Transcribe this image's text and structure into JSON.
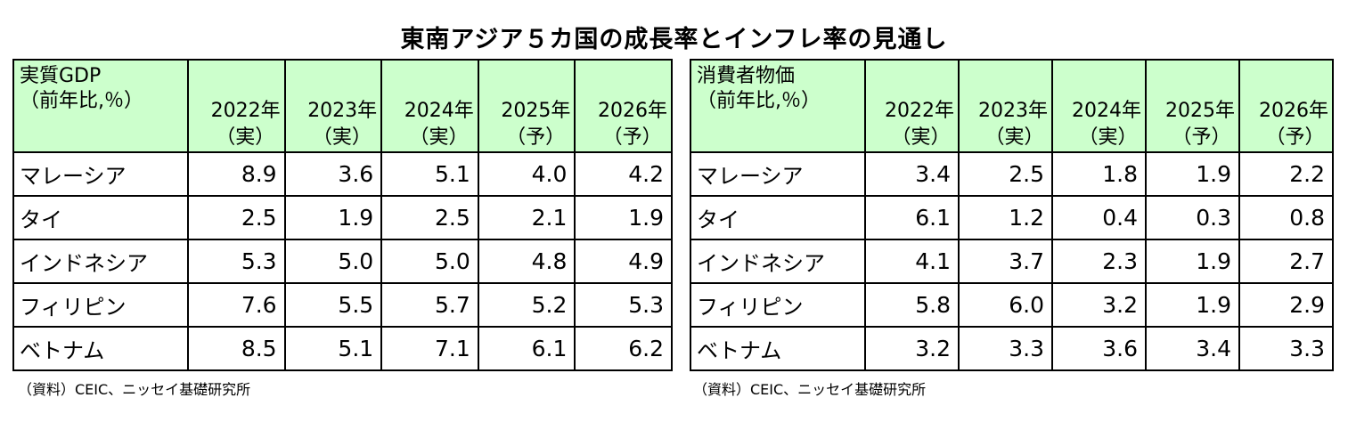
{
  "title": "東南アジア５カ国の成長率とインフレ率の見通し",
  "tables": [
    {
      "id": "gdp",
      "corner_line1": "実質GDP",
      "corner_line2": "（前年比,％）",
      "columns": [
        {
          "year": "2022年",
          "kind": "（実）"
        },
        {
          "year": "2023年",
          "kind": "（実）"
        },
        {
          "year": "2024年",
          "kind": "（実）"
        },
        {
          "year": "2025年",
          "kind": "（予）"
        },
        {
          "year": "2026年",
          "kind": "（予）"
        }
      ],
      "rows": [
        {
          "name": "マレーシア",
          "values": [
            "8.9",
            "3.6",
            "5.1",
            "4.0",
            "4.2"
          ]
        },
        {
          "name": "タイ",
          "values": [
            "2.5",
            "1.9",
            "2.5",
            "2.1",
            "1.9"
          ]
        },
        {
          "name": "インドネシア",
          "values": [
            "5.3",
            "5.0",
            "5.0",
            "4.8",
            "4.9"
          ]
        },
        {
          "name": "フィリピン",
          "values": [
            "7.6",
            "5.5",
            "5.7",
            "5.2",
            "5.3"
          ]
        },
        {
          "name": "ベトナム",
          "values": [
            "8.5",
            "5.1",
            "7.1",
            "6.1",
            "6.2"
          ]
        }
      ],
      "source": "（資料）CEIC、ニッセイ基礎研究所"
    },
    {
      "id": "cpi",
      "corner_line1": "消費者物価",
      "corner_line2": "（前年比,％）",
      "columns": [
        {
          "year": "2022年",
          "kind": "（実）"
        },
        {
          "year": "2023年",
          "kind": "（実）"
        },
        {
          "year": "2024年",
          "kind": "（実）"
        },
        {
          "year": "2025年",
          "kind": "（予）"
        },
        {
          "year": "2026年",
          "kind": "（予）"
        }
      ],
      "rows": [
        {
          "name": "マレーシア",
          "values": [
            "3.4",
            "2.5",
            "1.8",
            "1.9",
            "2.2"
          ]
        },
        {
          "name": "タイ",
          "values": [
            "6.1",
            "1.2",
            "0.4",
            "0.3",
            "0.8"
          ]
        },
        {
          "name": "インドネシア",
          "values": [
            "4.1",
            "3.7",
            "2.3",
            "1.9",
            "2.7"
          ]
        },
        {
          "name": "フィリピン",
          "values": [
            "5.8",
            "6.0",
            "3.2",
            "1.9",
            "2.9"
          ]
        },
        {
          "name": "ベトナム",
          "values": [
            "3.2",
            "3.3",
            "3.6",
            "3.4",
            "3.3"
          ]
        }
      ],
      "source": "（資料）CEIC、ニッセイ基礎研究所"
    }
  ],
  "colors": {
    "header_bg": "#ccffcc",
    "border": "#000000"
  }
}
